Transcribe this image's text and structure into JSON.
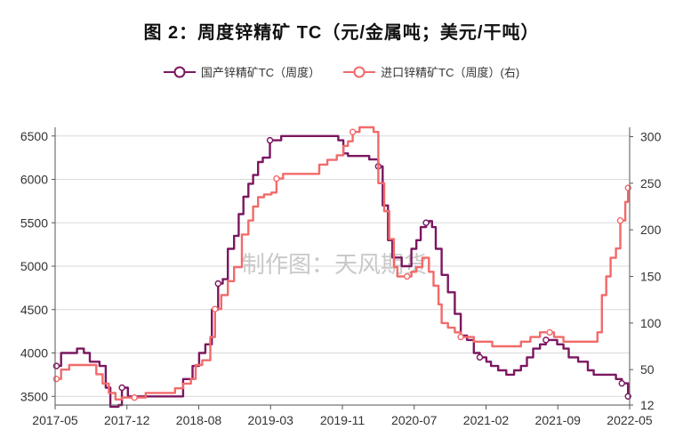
{
  "title": "图 2：周度锌精矿 TC（元/金属吨；美元/干吨）",
  "watermark": "制作图：天风期货",
  "chart_data": {
    "type": "line",
    "x": [
      "2017-05",
      "2017-12",
      "2018-08",
      "2019-03",
      "2019-11",
      "2020-07",
      "2021-02",
      "2021-09",
      "2022-05"
    ],
    "ylim": [
      3400,
      6600
    ],
    "y2lim": [
      12,
      310
    ],
    "yticks": [
      3500,
      4000,
      4500,
      5000,
      5500,
      6000,
      6500
    ],
    "y2ticks": [
      12,
      50,
      100,
      150,
      200,
      250,
      300
    ],
    "grid": true,
    "legend_position": "top",
    "series": [
      {
        "name": "国产锌精矿TC（周度）",
        "axis": "left",
        "color": "#7b1760",
        "values": [
          [
            "2017-05-05",
            3850
          ],
          [
            "2017-05-20",
            4000
          ],
          [
            "2017-06-25",
            4000
          ],
          [
            "2017-07-10",
            4050
          ],
          [
            "2017-08-01",
            4000
          ],
          [
            "2017-08-20",
            3900
          ],
          [
            "2017-09-20",
            3850
          ],
          [
            "2017-10-10",
            3600
          ],
          [
            "2017-10-25",
            3380
          ],
          [
            "2017-11-20",
            3400
          ],
          [
            "2017-12-01",
            3600
          ],
          [
            "2017-12-20",
            3500
          ],
          [
            "2018-02-01",
            3500
          ],
          [
            "2018-04-01",
            3500
          ],
          [
            "2018-05-15",
            3500
          ],
          [
            "2018-06-15",
            3700
          ],
          [
            "2018-07-15",
            3850
          ],
          [
            "2018-08-05",
            4000
          ],
          [
            "2018-08-25",
            4100
          ],
          [
            "2018-09-15",
            4500
          ],
          [
            "2018-10-05",
            4800
          ],
          [
            "2018-10-20",
            4850
          ],
          [
            "2018-11-05",
            5200
          ],
          [
            "2018-11-25",
            5350
          ],
          [
            "2018-12-10",
            5600
          ],
          [
            "2018-12-25",
            5800
          ],
          [
            "2019-01-10",
            5950
          ],
          [
            "2019-01-25",
            6050
          ],
          [
            "2019-02-10",
            6200
          ],
          [
            "2019-02-25",
            6250
          ],
          [
            "2019-03-20",
            6450
          ],
          [
            "2019-04-10",
            6450
          ],
          [
            "2019-04-25",
            6500
          ],
          [
            "2019-06-01",
            6500
          ],
          [
            "2019-09-01",
            6500
          ],
          [
            "2019-10-25",
            6450
          ],
          [
            "2019-11-10",
            6300
          ],
          [
            "2019-11-25",
            6270
          ],
          [
            "2020-01-01",
            6270
          ],
          [
            "2020-02-01",
            6230
          ],
          [
            "2020-03-01",
            6150
          ],
          [
            "2020-03-15",
            5700
          ],
          [
            "2020-04-01",
            5300
          ],
          [
            "2020-04-15",
            5100
          ],
          [
            "2020-05-01",
            5100
          ],
          [
            "2020-05-15",
            5000
          ],
          [
            "2020-06-01",
            5000
          ],
          [
            "2020-06-15",
            5200
          ],
          [
            "2020-07-01",
            5300
          ],
          [
            "2020-07-15",
            5450
          ],
          [
            "2020-08-01",
            5500
          ],
          [
            "2020-08-10",
            5520
          ],
          [
            "2020-08-20",
            5450
          ],
          [
            "2020-09-01",
            5200
          ],
          [
            "2020-09-20",
            4900
          ],
          [
            "2020-10-10",
            4700
          ],
          [
            "2020-11-01",
            4450
          ],
          [
            "2020-11-20",
            4200
          ],
          [
            "2020-12-10",
            4150
          ],
          [
            "2021-01-01",
            4000
          ],
          [
            "2021-01-20",
            3950
          ],
          [
            "2021-02-10",
            3900
          ],
          [
            "2021-02-25",
            3850
          ],
          [
            "2021-03-20",
            3800
          ],
          [
            "2021-04-15",
            3750
          ],
          [
            "2021-05-10",
            3800
          ],
          [
            "2021-06-01",
            3850
          ],
          [
            "2021-06-20",
            3950
          ],
          [
            "2021-07-10",
            4050
          ],
          [
            "2021-08-01",
            4100
          ],
          [
            "2021-08-20",
            4150
          ],
          [
            "2021-09-10",
            4150
          ],
          [
            "2021-09-25",
            4100
          ],
          [
            "2021-10-15",
            4050
          ],
          [
            "2021-11-01",
            3950
          ],
          [
            "2021-12-01",
            3900
          ],
          [
            "2022-01-01",
            3800
          ],
          [
            "2022-01-20",
            3750
          ],
          [
            "2022-03-01",
            3750
          ],
          [
            "2022-04-01",
            3700
          ],
          [
            "2022-04-20",
            3650
          ],
          [
            "2022-05-10",
            3500
          ]
        ]
      },
      {
        "name": "进口锌精矿TC（周度）(右)",
        "axis": "right",
        "color": "#f26a6a",
        "values": [
          [
            "2017-05-05",
            40
          ],
          [
            "2017-05-20",
            50
          ],
          [
            "2017-06-15",
            55
          ],
          [
            "2017-07-20",
            55
          ],
          [
            "2017-08-15",
            55
          ],
          [
            "2017-09-10",
            45
          ],
          [
            "2017-09-30",
            35
          ],
          [
            "2017-10-20",
            25
          ],
          [
            "2017-11-10",
            18
          ],
          [
            "2017-12-01",
            20
          ],
          [
            "2018-01-10",
            20
          ],
          [
            "2018-02-15",
            25
          ],
          [
            "2018-03-20",
            25
          ],
          [
            "2018-04-20",
            25
          ],
          [
            "2018-05-20",
            30
          ],
          [
            "2018-06-15",
            35
          ],
          [
            "2018-07-10",
            40
          ],
          [
            "2018-07-25",
            55
          ],
          [
            "2018-08-15",
            60
          ],
          [
            "2018-09-10",
            85
          ],
          [
            "2018-09-25",
            115
          ],
          [
            "2018-10-15",
            130
          ],
          [
            "2018-11-05",
            145
          ],
          [
            "2018-11-25",
            160
          ],
          [
            "2018-12-20",
            195
          ],
          [
            "2019-01-10",
            210
          ],
          [
            "2019-01-25",
            225
          ],
          [
            "2019-02-10",
            235
          ],
          [
            "2019-03-01",
            238
          ],
          [
            "2019-03-25",
            240
          ],
          [
            "2019-04-10",
            255
          ],
          [
            "2019-05-01",
            260
          ],
          [
            "2019-06-01",
            260
          ],
          [
            "2019-07-01",
            260
          ],
          [
            "2019-08-01",
            260
          ],
          [
            "2019-08-25",
            270
          ],
          [
            "2019-09-20",
            275
          ],
          [
            "2019-10-20",
            280
          ],
          [
            "2019-11-10",
            290
          ],
          [
            "2019-11-25",
            295
          ],
          [
            "2019-12-10",
            305
          ],
          [
            "2020-01-01",
            310
          ],
          [
            "2020-02-01",
            310
          ],
          [
            "2020-02-15",
            305
          ],
          [
            "2020-03-01",
            250
          ],
          [
            "2020-03-20",
            220
          ],
          [
            "2020-04-05",
            190
          ],
          [
            "2020-04-20",
            160
          ],
          [
            "2020-05-01",
            150
          ],
          [
            "2020-05-15",
            150
          ],
          [
            "2020-06-01",
            150
          ],
          [
            "2020-06-15",
            155
          ],
          [
            "2020-07-01",
            160
          ],
          [
            "2020-07-20",
            170
          ],
          [
            "2020-08-10",
            155
          ],
          [
            "2020-08-25",
            140
          ],
          [
            "2020-09-10",
            120
          ],
          [
            "2020-09-20",
            100
          ],
          [
            "2020-10-10",
            95
          ],
          [
            "2020-11-01",
            90
          ],
          [
            "2020-11-20",
            85
          ],
          [
            "2020-12-10",
            85
          ],
          [
            "2021-01-01",
            80
          ],
          [
            "2021-02-01",
            80
          ],
          [
            "2021-03-01",
            75
          ],
          [
            "2021-04-01",
            75
          ],
          [
            "2021-05-01",
            75
          ],
          [
            "2021-06-01",
            80
          ],
          [
            "2021-07-01",
            85
          ],
          [
            "2021-08-01",
            90
          ],
          [
            "2021-09-01",
            90
          ],
          [
            "2021-09-15",
            85
          ],
          [
            "2021-10-15",
            80
          ],
          [
            "2021-12-01",
            80
          ],
          [
            "2022-01-15",
            80
          ],
          [
            "2022-02-01",
            90
          ],
          [
            "2022-02-15",
            130
          ],
          [
            "2022-03-01",
            150
          ],
          [
            "2022-03-15",
            170
          ],
          [
            "2022-04-01",
            180
          ],
          [
            "2022-04-15",
            210
          ],
          [
            "2022-05-01",
            230
          ],
          [
            "2022-05-10",
            245
          ]
        ]
      }
    ]
  }
}
